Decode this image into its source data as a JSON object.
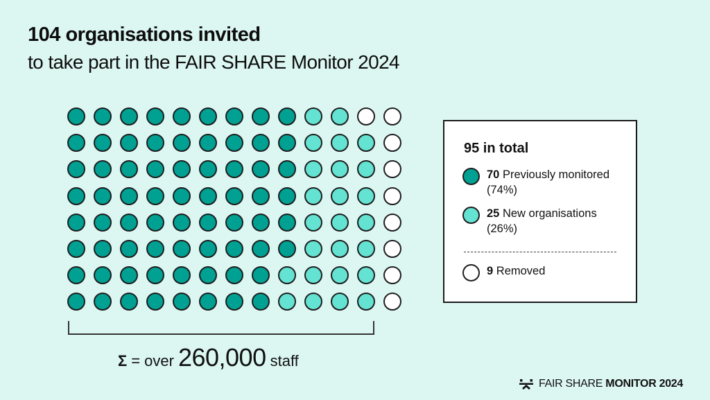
{
  "header": {
    "title": "104 organisations invited",
    "subtitle": "to take part in the FAIR SHARE Monitor 2024"
  },
  "colors": {
    "background": "#dcf7f2",
    "previously_monitored": "#00a092",
    "new_organisations": "#64e2d2",
    "removed": "#ffffff",
    "outline": "#1e1e1e"
  },
  "grid": {
    "rows": 8,
    "cols": 13,
    "layout": [
      "PPPPPPPPPNNRR",
      "PPPPPPPPPNNNR",
      "PPPPPPPPPNNNR",
      "PPPPPPPPPNNNR",
      "PPPPPPPPPNNNR",
      "PPPPPPPPPNNNR",
      "PPPPPPPPNNNNR",
      "PPPPPPPPNNNNR"
    ]
  },
  "sum": {
    "sigma": "Σ",
    "prefix": "= over",
    "value": "260,000",
    "suffix": "staff"
  },
  "legend": {
    "title": "95 in total",
    "items": [
      {
        "count": "70",
        "label": "Previously monitored (74%)",
        "type": "prev"
      },
      {
        "count": "25",
        "label": "New organisations (26%)",
        "type": "new"
      },
      {
        "count": "9",
        "label": "Removed",
        "type": "removed"
      }
    ]
  },
  "footer": {
    "brand_light": "FAIR SHARE",
    "brand_bold": "MONITOR 2024"
  },
  "chart_data": {
    "type": "waffle",
    "title": "104 organisations invited",
    "subtitle": "to take part in the FAIR SHARE Monitor 2024",
    "total_invited": 104,
    "total_participating": 95,
    "categories": [
      "Previously monitored",
      "New organisations",
      "Removed"
    ],
    "values": [
      70,
      25,
      9
    ],
    "percentages": [
      74,
      26,
      null
    ],
    "grid": {
      "rows": 8,
      "cols": 13
    },
    "annotation": "Σ = over 260,000 staff",
    "legend_position": "right"
  }
}
